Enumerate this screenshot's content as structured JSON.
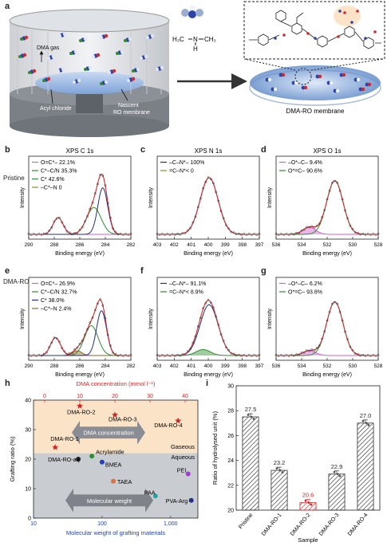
{
  "panel_labels": {
    "a": "a",
    "b": "b",
    "c": "c",
    "d": "d",
    "e": "e",
    "f": "f",
    "g": "g",
    "h": "h",
    "i": "i"
  },
  "panel_a": {
    "dma_gas": "DMA gas",
    "acyl_chloride": "Acyl chloride",
    "nascent_line1": "Nascent",
    "nascent_line2": "RO membrane",
    "membrane_label": "DMA-RO membrane",
    "molecule_ch3_left": "H₃C",
    "molecule_n": "N",
    "molecule_ch3_right": "CH₃",
    "molecule_h": "H"
  },
  "row_labels": {
    "pristine": "Pristine",
    "dma_ro": "DMA-RO"
  },
  "xps_titles": {
    "c1s": "XPS  C 1s",
    "n1s": "XPS  N 1s",
    "o1s": "XPS  O 1s"
  },
  "axis_text": {
    "intensity": "Intensity",
    "binding_energy": "Binding energy (eV)"
  },
  "colors": {
    "red": "#d62728",
    "blue": "#1f2f8a",
    "green": "#2e8b2e",
    "magenta": "#d05fd0",
    "olive": "#8a8a2a",
    "gray_region": "#c9ccd1",
    "orange_region": "#fbe3c8"
  },
  "chart_data": [
    {
      "id": "b",
      "type": "line",
      "title": "XPS  C 1s",
      "x_ticks": [
        "290",
        "288",
        "286",
        "284",
        "282"
      ],
      "xlim": [
        290,
        282
      ],
      "legend": [
        {
          "symbol": "O=C*–",
          "value": "22.1%"
        },
        {
          "symbol": "C*–C/N",
          "value": "35.3%"
        },
        {
          "symbol": "C*",
          "value": "42.6%"
        },
        {
          "symbol": "–C*–N",
          "value": "0"
        }
      ],
      "peaks": [
        {
          "center": 287.7,
          "height": 0.28,
          "width": 0.55
        },
        {
          "center": 284.9,
          "height": 0.45,
          "width": 0.8
        },
        {
          "center": 284.2,
          "height": 0.78,
          "width": 0.55
        }
      ]
    },
    {
      "id": "c",
      "type": "line",
      "title": "XPS  N 1s",
      "x_ticks": [
        "403",
        "402",
        "401",
        "400",
        "399",
        "398",
        "397"
      ],
      "xlim": [
        403,
        397
      ],
      "legend": [
        {
          "symbol": "–C–N*–",
          "value": "100%"
        },
        {
          "symbol": "=C–N*<",
          "value": "0"
        }
      ],
      "peaks": [
        {
          "center": 399.95,
          "height": 0.95,
          "width": 0.75
        }
      ]
    },
    {
      "id": "d",
      "type": "line",
      "title": "XPS  O 1s",
      "x_ticks": [
        "536",
        "534",
        "532",
        "530",
        "528"
      ],
      "xlim": [
        536,
        528
      ],
      "legend": [
        {
          "symbol": "–O*–C–",
          "value": "9.4%"
        },
        {
          "symbol": "O*=C–",
          "value": "90.6%"
        }
      ],
      "peaks": [
        {
          "center": 533.4,
          "height": 0.12,
          "width": 0.7
        },
        {
          "center": 531.4,
          "height": 0.9,
          "width": 0.9
        }
      ]
    },
    {
      "id": "e",
      "type": "line",
      "x_ticks": [
        "290",
        "288",
        "286",
        "284",
        "282"
      ],
      "xlim": [
        290,
        282
      ],
      "legend": [
        {
          "symbol": "O=C*–",
          "value": "26.9%"
        },
        {
          "symbol": "C*–C/N",
          "value": "32.7%"
        },
        {
          "symbol": "C*",
          "value": "38.0%"
        },
        {
          "symbol": "–C*–N",
          "value": "2.4%"
        }
      ],
      "peaks": [
        {
          "center": 287.9,
          "height": 0.3,
          "width": 0.55
        },
        {
          "center": 286.2,
          "height": 0.08,
          "width": 0.5
        },
        {
          "center": 285.1,
          "height": 0.5,
          "width": 0.75
        },
        {
          "center": 284.3,
          "height": 0.75,
          "width": 0.55
        }
      ]
    },
    {
      "id": "f",
      "type": "line",
      "x_ticks": [
        "403",
        "402",
        "401",
        "400",
        "399",
        "398",
        "397"
      ],
      "xlim": [
        403,
        397
      ],
      "legend": [
        {
          "symbol": "–C–N*–",
          "value": "91.1%"
        },
        {
          "symbol": "=C–N*<",
          "value": "8.9%"
        }
      ],
      "peaks": [
        {
          "center": 399.95,
          "height": 0.85,
          "width": 0.75
        },
        {
          "center": 400.3,
          "height": 0.1,
          "width": 0.6
        }
      ]
    },
    {
      "id": "g",
      "type": "line",
      "x_ticks": [
        "536",
        "534",
        "532",
        "530",
        "528"
      ],
      "xlim": [
        536,
        528
      ],
      "legend": [
        {
          "symbol": "–O*–C–",
          "value": "6.2%"
        },
        {
          "symbol": "O*=C–",
          "value": "93.8%"
        }
      ],
      "peaks": [
        {
          "center": 533.4,
          "height": 0.08,
          "width": 0.7
        },
        {
          "center": 531.4,
          "height": 0.9,
          "width": 0.9
        }
      ]
    },
    {
      "id": "h",
      "type": "scatter",
      "top_axis_label": "DMA concentration (mmol l⁻¹)",
      "top_ticks": [
        "0",
        "10",
        "20",
        "30",
        "40"
      ],
      "top_xlim": [
        0,
        40
      ],
      "x_label": "Molecular weight of grafting materials",
      "x_ticks": [
        "10",
        "100",
        "1,000"
      ],
      "xlim": [
        10,
        2500
      ],
      "x_log": true,
      "y_label": "Grafting ratio (%)",
      "y_ticks": [
        "0",
        "10",
        "20",
        "30",
        "40"
      ],
      "ylim": [
        0,
        40
      ],
      "gaseous": [
        {
          "name": "DMA-RO-1",
          "conc": 3,
          "y": 24
        },
        {
          "name": "DMA-RO-2",
          "conc": 10,
          "y": 38
        },
        {
          "name": "DMA-RO-3",
          "conc": 20,
          "y": 35
        },
        {
          "name": "DMA-RO-4",
          "conc": 38,
          "y": 33
        }
      ],
      "aqueous": [
        {
          "name": "DMA-RO-aq",
          "mw": 45,
          "y": 20,
          "color": "#222222"
        },
        {
          "name": "Acrylamide",
          "mw": 71,
          "y": 21,
          "color": "#2e8b2e"
        },
        {
          "name": "BMEA",
          "mw": 100,
          "y": 19,
          "color": "#1f3fbf"
        },
        {
          "name": "TAEA",
          "mw": 146,
          "y": 12.5,
          "color": "#e07040"
        },
        {
          "name": "PAA",
          "mw": 600,
          "y": 7.5,
          "color": "#2aa0a0"
        },
        {
          "name": "PEI",
          "mw": 1800,
          "y": 15,
          "color": "#a040d0"
        },
        {
          "name": "PVA-Arg",
          "mw": 2000,
          "y": 6,
          "color": "#1f2f8a"
        }
      ],
      "region_gaseous": "Gaseous",
      "region_aqueous": "Aqueous",
      "arrow_dma": "DMA concentration",
      "arrow_mw": "Molecular weight"
    },
    {
      "id": "i",
      "type": "bar",
      "categories": [
        "Pristine",
        "DMA-RO-1",
        "DMA-RO-2",
        "DMA-RO-3",
        "DMA-RO-4"
      ],
      "values": [
        27.5,
        23.2,
        20.6,
        22.9,
        27.0
      ],
      "labels": [
        "27.5",
        "23.2",
        "20.6",
        "22.9",
        "27.0"
      ],
      "x_label": "Sample",
      "y_label": "Ratio of hydrolysed unit (%)",
      "y_ticks": [
        "20",
        "22",
        "24",
        "26",
        "28",
        "30"
      ],
      "ylim": [
        20,
        30
      ]
    }
  ]
}
